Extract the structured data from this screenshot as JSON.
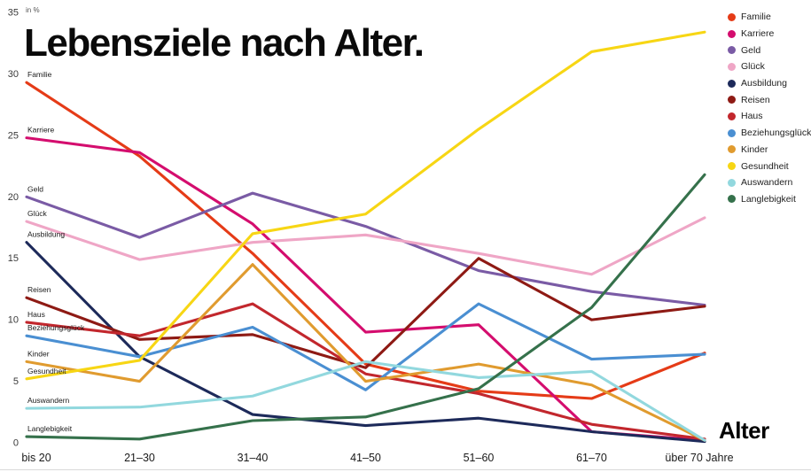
{
  "title": "Lebensziele nach Alter.",
  "unit_label": "in %",
  "xaxis_title": "Alter",
  "chart_data": {
    "type": "line",
    "title": "Lebensziele nach Alter.",
    "ylabel": "in %",
    "xlabel": "Alter",
    "ylim": [
      0,
      35
    ],
    "yticks": [
      0,
      5,
      10,
      15,
      20,
      25,
      30,
      35
    ],
    "grid": false,
    "legend_position": "top-right",
    "categories": [
      "bis 20",
      "21–30",
      "31–40",
      "41–50",
      "51–60",
      "61–70",
      "über 70 Jahre"
    ],
    "series": [
      {
        "name": "Familie",
        "color": "#e53b17",
        "values": [
          29.3,
          23.3,
          15.4,
          6.4,
          4.2,
          3.6,
          7.3
        ]
      },
      {
        "name": "Karriere",
        "color": "#d40d6e",
        "values": [
          24.8,
          23.6,
          17.8,
          9.0,
          9.6,
          0.9,
          0.2
        ]
      },
      {
        "name": "Geld",
        "color": "#7a5ba5",
        "values": [
          20.0,
          16.7,
          20.3,
          17.6,
          14.0,
          12.3,
          11.2
        ]
      },
      {
        "name": "Glück",
        "color": "#efa6c6",
        "values": [
          18.0,
          14.9,
          16.3,
          16.9,
          15.4,
          13.7,
          18.3
        ]
      },
      {
        "name": "Ausbildung",
        "color": "#1d2a5a",
        "values": [
          16.3,
          7.0,
          2.3,
          1.4,
          2.0,
          0.9,
          0.1
        ]
      },
      {
        "name": "Reisen",
        "color": "#8e1a14",
        "values": [
          11.8,
          8.4,
          8.8,
          6.1,
          15.0,
          10.0,
          11.1
        ]
      },
      {
        "name": "Haus",
        "color": "#c2272d",
        "values": [
          9.8,
          8.7,
          11.3,
          5.6,
          4.0,
          1.5,
          0.3
        ]
      },
      {
        "name": "Beziehungsglück",
        "color": "#4a8fd2",
        "values": [
          8.7,
          7.0,
          9.4,
          4.3,
          11.3,
          6.8,
          7.2
        ]
      },
      {
        "name": "Kinder",
        "color": "#e09b2f",
        "values": [
          6.6,
          5.0,
          14.5,
          5.0,
          6.4,
          4.7,
          0.2
        ]
      },
      {
        "name": "Gesundheit",
        "color": "#f7d614",
        "values": [
          5.2,
          6.7,
          17.0,
          18.6,
          25.5,
          31.8,
          33.4
        ]
      },
      {
        "name": "Auswandern",
        "color": "#92d8de",
        "values": [
          2.8,
          2.9,
          3.8,
          6.6,
          5.3,
          5.8,
          0.2
        ]
      },
      {
        "name": "Langlebigkeit",
        "color": "#35714b",
        "values": [
          0.5,
          0.3,
          1.8,
          2.1,
          4.4,
          11.0,
          21.8
        ]
      }
    ]
  }
}
